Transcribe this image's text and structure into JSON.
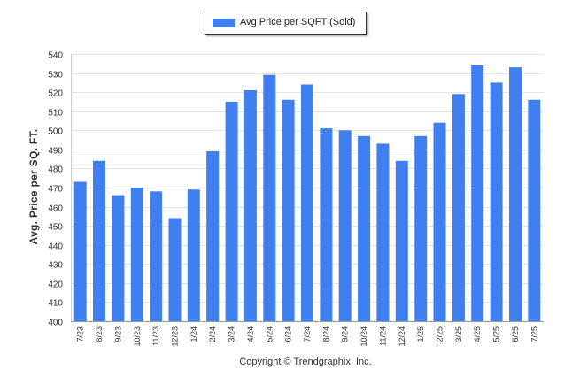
{
  "chart_data": {
    "type": "bar",
    "legend": {
      "label": "Avg Price per SQFT (Sold)",
      "position": "top-center"
    },
    "ylabel": "Avg. Price per SQ. FT.",
    "footer": "Copyright © Trendgraphix, Inc.",
    "ylim": [
      400,
      540
    ],
    "yticks": [
      400,
      410,
      420,
      430,
      440,
      450,
      460,
      470,
      480,
      490,
      500,
      510,
      520,
      530,
      540
    ],
    "grid": true,
    "bar_color": "#3f7ff0",
    "categories": [
      "7/23",
      "8/23",
      "9/23",
      "10/23",
      "11/23",
      "12/23",
      "1/24",
      "2/24",
      "3/24",
      "4/24",
      "5/24",
      "6/24",
      "7/24",
      "8/24",
      "9/24",
      "10/24",
      "11/24",
      "12/24",
      "1/25",
      "2/25",
      "3/25",
      "4/25",
      "5/25",
      "6/25",
      "7/25"
    ],
    "series": [
      {
        "name": "Avg Price per SQFT (Sold)",
        "values": [
          473,
          484,
          466,
          470,
          468,
          454,
          469,
          489,
          515,
          521,
          529,
          516,
          524,
          501,
          500,
          497,
          493,
          484,
          497,
          504,
          519,
          534,
          525,
          533,
          516
        ]
      }
    ]
  }
}
